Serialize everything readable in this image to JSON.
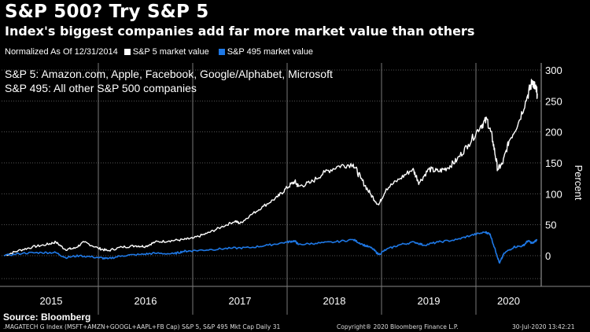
{
  "header": {
    "title": "S&P 500? Try S&P 5",
    "subtitle": "Index's biggest companies add far more market value than others"
  },
  "legend": {
    "note": "Normalized As Of 12/31/2014",
    "items": [
      {
        "label": "S&P 5 market value",
        "color": "#ffffff"
      },
      {
        "label": "S&P 495 market value",
        "color": "#1e78e6"
      }
    ]
  },
  "annotations": {
    "line1": "S&P 5: Amazon.com, Apple, Facebook, Google/Alphabet, Microsoft",
    "line2": "S&P 495: All other S&P 500 companies"
  },
  "footer": {
    "source": "Source: Bloomberg",
    "left": ".MAGATECH G Index (MSFT+AMZN+GOOGL+AAPL+FB Cap) S&P 5, S&P 495 Mkt Cap  Daily 31",
    "center": "Copyright® 2020 Bloomberg Finance L.P.",
    "right": "30-Jul-2020 13:42:21"
  },
  "chart_data": {
    "type": "line",
    "x_unit": "year",
    "y_axis_title": "Percent",
    "y_axis_side": "right",
    "ylim": [
      -45,
      310
    ],
    "y_ticks": [
      0,
      50,
      100,
      150,
      200,
      250,
      300
    ],
    "x_tick_labels": [
      "2015",
      "2016",
      "2017",
      "2018",
      "2019",
      "2020"
    ],
    "grid": true,
    "series": [
      {
        "name": "S&P 5 market value",
        "color": "#ffffff",
        "points": [
          [
            2015.0,
            0
          ],
          [
            2015.15,
            8
          ],
          [
            2015.3,
            14
          ],
          [
            2015.45,
            18
          ],
          [
            2015.55,
            22
          ],
          [
            2015.65,
            10
          ],
          [
            2015.75,
            12
          ],
          [
            2015.85,
            22
          ],
          [
            2016.0,
            12
          ],
          [
            2016.1,
            8
          ],
          [
            2016.25,
            14
          ],
          [
            2016.4,
            16
          ],
          [
            2016.5,
            15
          ],
          [
            2016.6,
            22
          ],
          [
            2016.75,
            24
          ],
          [
            2016.9,
            26
          ],
          [
            2017.0,
            28
          ],
          [
            2017.15,
            36
          ],
          [
            2017.3,
            46
          ],
          [
            2017.45,
            56
          ],
          [
            2017.5,
            52
          ],
          [
            2017.6,
            64
          ],
          [
            2017.75,
            80
          ],
          [
            2017.9,
            95
          ],
          [
            2018.0,
            110
          ],
          [
            2018.08,
            120
          ],
          [
            2018.12,
            112
          ],
          [
            2018.25,
            118
          ],
          [
            2018.4,
            135
          ],
          [
            2018.55,
            145
          ],
          [
            2018.7,
            148
          ],
          [
            2018.78,
            125
          ],
          [
            2018.88,
            100
          ],
          [
            2018.97,
            82
          ],
          [
            2019.05,
            108
          ],
          [
            2019.2,
            125
          ],
          [
            2019.33,
            140
          ],
          [
            2019.4,
            118
          ],
          [
            2019.5,
            140
          ],
          [
            2019.6,
            136
          ],
          [
            2019.7,
            142
          ],
          [
            2019.8,
            155
          ],
          [
            2019.92,
            180
          ],
          [
            2020.05,
            210
          ],
          [
            2020.12,
            220
          ],
          [
            2020.18,
            185
          ],
          [
            2020.23,
            140
          ],
          [
            2020.28,
            148
          ],
          [
            2020.35,
            185
          ],
          [
            2020.45,
            215
          ],
          [
            2020.55,
            260
          ],
          [
            2020.6,
            283
          ],
          [
            2020.63,
            270
          ],
          [
            2020.65,
            262
          ]
        ]
      },
      {
        "name": "S&P 495 market value",
        "color": "#1e78e6",
        "points": [
          [
            2015.0,
            0
          ],
          [
            2015.2,
            4
          ],
          [
            2015.4,
            5
          ],
          [
            2015.55,
            5
          ],
          [
            2015.65,
            -3
          ],
          [
            2015.8,
            0
          ],
          [
            2016.0,
            -3
          ],
          [
            2016.1,
            -5
          ],
          [
            2016.25,
            0
          ],
          [
            2016.45,
            2
          ],
          [
            2016.6,
            4
          ],
          [
            2016.8,
            3
          ],
          [
            2016.9,
            7
          ],
          [
            2017.0,
            8
          ],
          [
            2017.2,
            10
          ],
          [
            2017.4,
            12
          ],
          [
            2017.6,
            13
          ],
          [
            2017.8,
            17
          ],
          [
            2018.0,
            22
          ],
          [
            2018.08,
            24
          ],
          [
            2018.12,
            18
          ],
          [
            2018.3,
            20
          ],
          [
            2018.5,
            22
          ],
          [
            2018.7,
            26
          ],
          [
            2018.8,
            18
          ],
          [
            2018.9,
            12
          ],
          [
            2018.97,
            2
          ],
          [
            2019.05,
            10
          ],
          [
            2019.2,
            18
          ],
          [
            2019.35,
            22
          ],
          [
            2019.45,
            17
          ],
          [
            2019.6,
            22
          ],
          [
            2019.8,
            26
          ],
          [
            2019.95,
            33
          ],
          [
            2020.1,
            38
          ],
          [
            2020.15,
            35
          ],
          [
            2020.22,
            2
          ],
          [
            2020.25,
            -12
          ],
          [
            2020.3,
            4
          ],
          [
            2020.4,
            14
          ],
          [
            2020.5,
            16
          ],
          [
            2020.55,
            24
          ],
          [
            2020.6,
            20
          ],
          [
            2020.65,
            26
          ]
        ]
      }
    ]
  }
}
